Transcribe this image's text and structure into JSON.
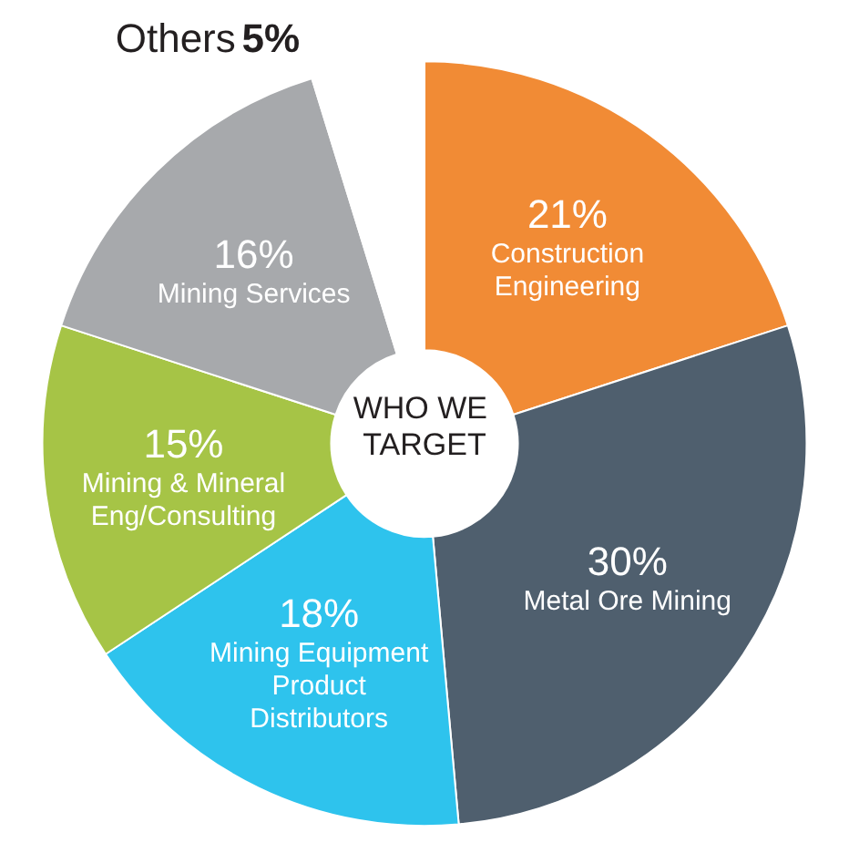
{
  "chart_data": {
    "type": "donut",
    "title": "WHO WE TARGET",
    "categories": [
      "Construction Engineering",
      "Metal Ore Mining",
      "Mining Equipment Product Distributors",
      "Mining & Mineral Eng/Consulting",
      "Mining Services",
      "Others"
    ],
    "values": [
      21,
      30,
      18,
      15,
      16,
      5
    ],
    "value_labels": [
      "21%",
      "30%",
      "18%",
      "15%",
      "16%",
      "5%"
    ],
    "colors": [
      "#f18b35",
      "#4f5f6e",
      "#2ec3ed",
      "#a6c446",
      "#a7a9ac",
      "#ffffff"
    ],
    "legend": false
  }
}
